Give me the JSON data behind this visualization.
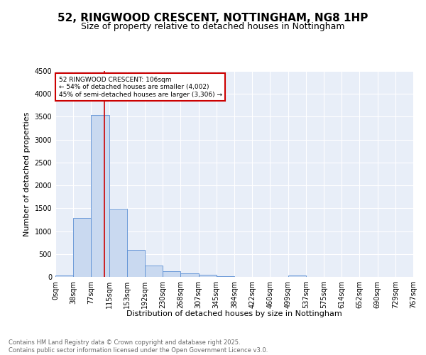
{
  "title": "52, RINGWOOD CRESCENT, NOTTINGHAM, NG8 1HP",
  "subtitle": "Size of property relative to detached houses in Nottingham",
  "xlabel": "Distribution of detached houses by size in Nottingham",
  "ylabel": "Number of detached properties",
  "bar_values": [
    30,
    1290,
    3540,
    1490,
    590,
    245,
    120,
    75,
    40,
    20,
    5,
    0,
    0,
    35,
    0,
    0,
    0,
    0,
    0,
    0
  ],
  "bar_labels": [
    "0sqm",
    "38sqm",
    "77sqm",
    "115sqm",
    "153sqm",
    "192sqm",
    "230sqm",
    "268sqm",
    "307sqm",
    "345sqm",
    "384sqm",
    "422sqm",
    "460sqm",
    "499sqm",
    "537sqm",
    "575sqm",
    "614sqm",
    "652sqm",
    "690sqm",
    "729sqm",
    "767sqm"
  ],
  "bar_color": "#c9d9f0",
  "bar_edge_color": "#5b8fd4",
  "vline_x": 2.75,
  "vline_color": "#cc0000",
  "annotation_text": "52 RINGWOOD CRESCENT: 106sqm\n← 54% of detached houses are smaller (4,002)\n45% of semi-detached houses are larger (3,306) →",
  "annotation_box_color": "#ffffff",
  "annotation_box_edge": "#cc0000",
  "ylim": [
    0,
    4500
  ],
  "yticks": [
    0,
    500,
    1000,
    1500,
    2000,
    2500,
    3000,
    3500,
    4000,
    4500
  ],
  "background_color": "#e8eef8",
  "grid_color": "#ffffff",
  "footer_text": "Contains HM Land Registry data © Crown copyright and database right 2025.\nContains public sector information licensed under the Open Government Licence v3.0.",
  "title_fontsize": 11,
  "subtitle_fontsize": 9,
  "label_fontsize": 8,
  "tick_fontsize": 7,
  "footer_fontsize": 6
}
